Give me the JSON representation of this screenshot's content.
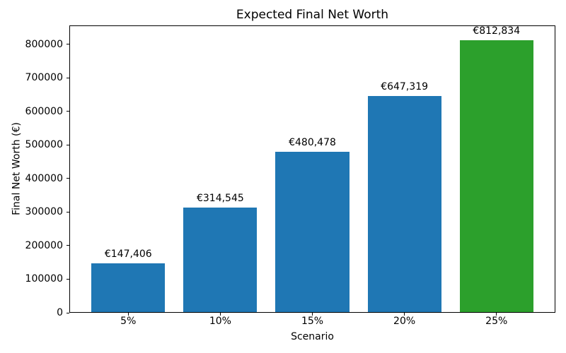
{
  "chart_data": {
    "type": "bar",
    "title": "Expected Final Net Worth",
    "xlabel": "Scenario",
    "ylabel": "Final Net Worth (€)",
    "categories": [
      "5%",
      "10%",
      "15%",
      "20%",
      "25%"
    ],
    "values": [
      147406,
      314545,
      480478,
      647319,
      812834
    ],
    "bar_labels": [
      "€147,406",
      "€314,545",
      "€480,478",
      "€647,319",
      "€812,834"
    ],
    "bar_colors": [
      "#1f77b4",
      "#1f77b4",
      "#1f77b4",
      "#1f77b4",
      "#2ca02c"
    ],
    "bar_width": 0.8,
    "xlim": [
      -0.64,
      4.64
    ],
    "ylim": [
      0,
      856800
    ],
    "yticks": [
      0,
      100000,
      200000,
      300000,
      400000,
      500000,
      600000,
      700000,
      800000
    ],
    "ytick_labels": [
      "0",
      "100000",
      "200000",
      "300000",
      "400000",
      "500000",
      "600000",
      "700000",
      "800000"
    ],
    "grid": false,
    "legend": "none",
    "background_color": "#ffffff",
    "text_color": "#000000",
    "spine_color": "#000000"
  }
}
